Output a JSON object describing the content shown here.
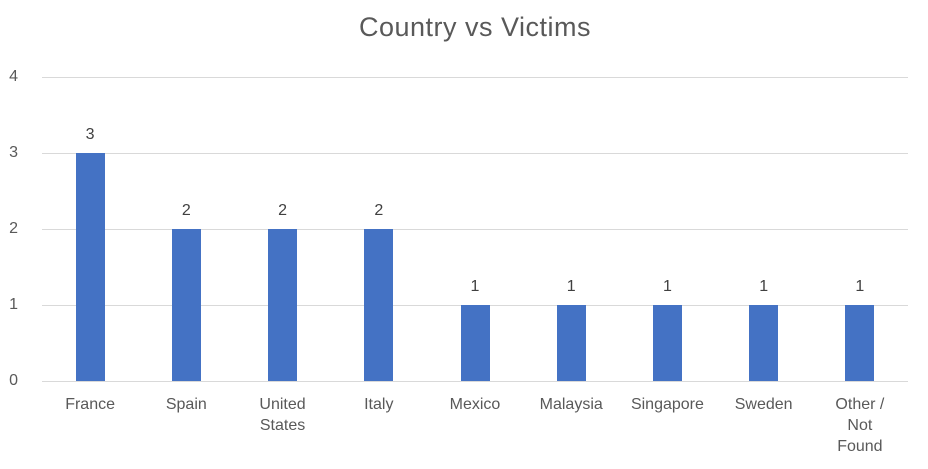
{
  "chart_data": {
    "type": "bar",
    "title": "Country vs Victims",
    "categories": [
      "France",
      "Spain",
      "United\nStates",
      "Italy",
      "Mexico",
      "Malaysia",
      "Singapore",
      "Sweden",
      "Other /\nNot\nFound"
    ],
    "values": [
      3,
      2,
      2,
      2,
      1,
      1,
      1,
      1,
      1
    ],
    "data_labels": [
      "3",
      "2",
      "2",
      "2",
      "1",
      "1",
      "1",
      "1",
      "1"
    ],
    "xlabel": "",
    "ylabel": "",
    "ylim": [
      0,
      4
    ],
    "yticks": [
      "0",
      "1",
      "2",
      "3",
      "4"
    ],
    "grid": "horizontal",
    "legend_position": "none",
    "colors": {
      "bar": "#4472C4",
      "gridline": "#D9D9D9",
      "title": "#595959",
      "axis_labels": "#595959",
      "data_labels": "#404040",
      "background": "#FFFFFF"
    }
  }
}
